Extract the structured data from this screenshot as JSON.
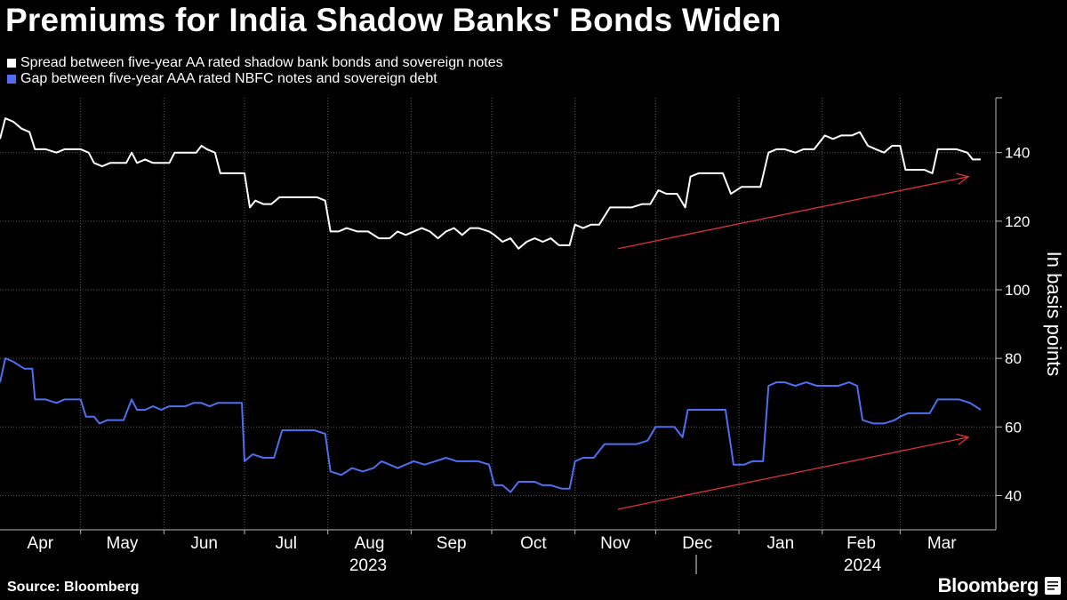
{
  "title": "Premiums for India Shadow Banks' Bonds Widen",
  "source": "Source: Bloomberg",
  "brand": "Bloomberg",
  "colors": {
    "background": "#000000",
    "aa_series": "#ffffff",
    "aaa_series": "#4f6ff0",
    "trend_arrow": "#e0323c",
    "grid": "#5a5a5a"
  },
  "chart_data": {
    "type": "line",
    "title": "Premiums for India Shadow Banks' Bonds Widen",
    "ylabel": "In basis points",
    "ylim": [
      30,
      156
    ],
    "yticks": [
      40,
      60,
      80,
      100,
      120,
      140
    ],
    "x_months": [
      "Apr",
      "May",
      "Jun",
      "Jul",
      "Aug",
      "Sep",
      "Oct",
      "Nov",
      "Dec",
      "Jan",
      "Feb",
      "Mar"
    ],
    "x_years": [
      "2023",
      "2024"
    ],
    "x_range": [
      "2023-04-01",
      "2024-03-31"
    ],
    "grid": true,
    "legend_position": "top-left",
    "series": [
      {
        "name": "Spread between five-year AA rated shadow bank bonds and sovereign notes",
        "color": "#ffffff",
        "points": [
          [
            "2023-04-01",
            144
          ],
          [
            "2023-04-03",
            150
          ],
          [
            "2023-04-06",
            149
          ],
          [
            "2023-04-09",
            147
          ],
          [
            "2023-04-12",
            146
          ],
          [
            "2023-04-14",
            141
          ],
          [
            "2023-04-18",
            141
          ],
          [
            "2023-04-22",
            140
          ],
          [
            "2023-04-25",
            141
          ],
          [
            "2023-04-28",
            141
          ],
          [
            "2023-05-01",
            141
          ],
          [
            "2023-05-04",
            140
          ],
          [
            "2023-05-06",
            137
          ],
          [
            "2023-05-09",
            136
          ],
          [
            "2023-05-12",
            137
          ],
          [
            "2023-05-15",
            137
          ],
          [
            "2023-05-18",
            137
          ],
          [
            "2023-05-20",
            140
          ],
          [
            "2023-05-22",
            137
          ],
          [
            "2023-05-25",
            138
          ],
          [
            "2023-05-28",
            137
          ],
          [
            "2023-05-31",
            137
          ],
          [
            "2023-06-03",
            137
          ],
          [
            "2023-06-05",
            140
          ],
          [
            "2023-06-09",
            140
          ],
          [
            "2023-06-13",
            140
          ],
          [
            "2023-06-15",
            142
          ],
          [
            "2023-06-17",
            141
          ],
          [
            "2023-06-20",
            140
          ],
          [
            "2023-06-22",
            134
          ],
          [
            "2023-06-25",
            134
          ],
          [
            "2023-06-28",
            134
          ],
          [
            "2023-07-01",
            134
          ],
          [
            "2023-07-03",
            124
          ],
          [
            "2023-07-05",
            126
          ],
          [
            "2023-07-08",
            125
          ],
          [
            "2023-07-11",
            125
          ],
          [
            "2023-07-14",
            127
          ],
          [
            "2023-07-18",
            127
          ],
          [
            "2023-07-22",
            127
          ],
          [
            "2023-07-25",
            127
          ],
          [
            "2023-07-28",
            127
          ],
          [
            "2023-07-31",
            126
          ],
          [
            "2023-08-02",
            117
          ],
          [
            "2023-08-05",
            117
          ],
          [
            "2023-08-08",
            118
          ],
          [
            "2023-08-12",
            117
          ],
          [
            "2023-08-16",
            117
          ],
          [
            "2023-08-20",
            115
          ],
          [
            "2023-08-24",
            115
          ],
          [
            "2023-08-27",
            117
          ],
          [
            "2023-08-30",
            116
          ],
          [
            "2023-09-02",
            117
          ],
          [
            "2023-09-05",
            118
          ],
          [
            "2023-09-08",
            117
          ],
          [
            "2023-09-11",
            115
          ],
          [
            "2023-09-14",
            117
          ],
          [
            "2023-09-17",
            118
          ],
          [
            "2023-09-20",
            116
          ],
          [
            "2023-09-23",
            118
          ],
          [
            "2023-09-26",
            118
          ],
          [
            "2023-09-30",
            117
          ],
          [
            "2023-10-02",
            116
          ],
          [
            "2023-10-05",
            114
          ],
          [
            "2023-10-08",
            115
          ],
          [
            "2023-10-11",
            112
          ],
          [
            "2023-10-14",
            114
          ],
          [
            "2023-10-17",
            115
          ],
          [
            "2023-10-20",
            114
          ],
          [
            "2023-10-23",
            115
          ],
          [
            "2023-10-26",
            113
          ],
          [
            "2023-10-30",
            113
          ],
          [
            "2023-11-01",
            119
          ],
          [
            "2023-11-04",
            118
          ],
          [
            "2023-11-07",
            119
          ],
          [
            "2023-11-10",
            119
          ],
          [
            "2023-11-14",
            124
          ],
          [
            "2023-11-18",
            124
          ],
          [
            "2023-11-22",
            124
          ],
          [
            "2023-11-26",
            125
          ],
          [
            "2023-11-29",
            125
          ],
          [
            "2023-12-02",
            129
          ],
          [
            "2023-12-05",
            128
          ],
          [
            "2023-12-09",
            128
          ],
          [
            "2023-12-12",
            124
          ],
          [
            "2023-12-14",
            133
          ],
          [
            "2023-12-17",
            134
          ],
          [
            "2023-12-20",
            134
          ],
          [
            "2023-12-23",
            134
          ],
          [
            "2023-12-26",
            134
          ],
          [
            "2023-12-29",
            128
          ],
          [
            "2024-01-02",
            130
          ],
          [
            "2024-01-05",
            130
          ],
          [
            "2024-01-09",
            130
          ],
          [
            "2024-01-12",
            140
          ],
          [
            "2024-01-15",
            141
          ],
          [
            "2024-01-18",
            141
          ],
          [
            "2024-01-22",
            140
          ],
          [
            "2024-01-25",
            141
          ],
          [
            "2024-01-29",
            141
          ],
          [
            "2024-02-02",
            145
          ],
          [
            "2024-02-05",
            144
          ],
          [
            "2024-02-08",
            145
          ],
          [
            "2024-02-12",
            145
          ],
          [
            "2024-02-15",
            146
          ],
          [
            "2024-02-18",
            142
          ],
          [
            "2024-02-21",
            141
          ],
          [
            "2024-02-24",
            140
          ],
          [
            "2024-02-27",
            142
          ],
          [
            "2024-03-01",
            142
          ],
          [
            "2024-03-03",
            135
          ],
          [
            "2024-03-06",
            135
          ],
          [
            "2024-03-10",
            135
          ],
          [
            "2024-03-13",
            134
          ],
          [
            "2024-03-15",
            141
          ],
          [
            "2024-03-18",
            141
          ],
          [
            "2024-03-22",
            141
          ],
          [
            "2024-03-26",
            140
          ],
          [
            "2024-03-28",
            138
          ],
          [
            "2024-03-31",
            138
          ]
        ]
      },
      {
        "name": "Gap between five-year AAA rated NBFC notes and sovereign debt",
        "color": "#4f6ff0",
        "points": [
          [
            "2023-04-01",
            73
          ],
          [
            "2023-04-03",
            80
          ],
          [
            "2023-04-06",
            79
          ],
          [
            "2023-04-10",
            77
          ],
          [
            "2023-04-13",
            77
          ],
          [
            "2023-04-14",
            68
          ],
          [
            "2023-04-18",
            68
          ],
          [
            "2023-04-22",
            67
          ],
          [
            "2023-04-25",
            68
          ],
          [
            "2023-04-28",
            68
          ],
          [
            "2023-05-01",
            68
          ],
          [
            "2023-05-03",
            63
          ],
          [
            "2023-05-06",
            63
          ],
          [
            "2023-05-08",
            61
          ],
          [
            "2023-05-11",
            62
          ],
          [
            "2023-05-14",
            62
          ],
          [
            "2023-05-17",
            62
          ],
          [
            "2023-05-20",
            68
          ],
          [
            "2023-05-22",
            65
          ],
          [
            "2023-05-25",
            65
          ],
          [
            "2023-05-28",
            66
          ],
          [
            "2023-05-31",
            65
          ],
          [
            "2023-06-03",
            66
          ],
          [
            "2023-06-06",
            66
          ],
          [
            "2023-06-09",
            66
          ],
          [
            "2023-06-12",
            67
          ],
          [
            "2023-06-15",
            67
          ],
          [
            "2023-06-18",
            66
          ],
          [
            "2023-06-21",
            67
          ],
          [
            "2023-06-24",
            67
          ],
          [
            "2023-06-27",
            67
          ],
          [
            "2023-06-30",
            67
          ],
          [
            "2023-07-01",
            50
          ],
          [
            "2023-07-04",
            52
          ],
          [
            "2023-07-08",
            51
          ],
          [
            "2023-07-12",
            51
          ],
          [
            "2023-07-15",
            59
          ],
          [
            "2023-07-19",
            59
          ],
          [
            "2023-07-23",
            59
          ],
          [
            "2023-07-27",
            59
          ],
          [
            "2023-07-31",
            58
          ],
          [
            "2023-08-02",
            47
          ],
          [
            "2023-08-06",
            46
          ],
          [
            "2023-08-10",
            48
          ],
          [
            "2023-08-14",
            47
          ],
          [
            "2023-08-18",
            48
          ],
          [
            "2023-08-21",
            50
          ],
          [
            "2023-08-24",
            49
          ],
          [
            "2023-08-27",
            48
          ],
          [
            "2023-08-30",
            49
          ],
          [
            "2023-09-02",
            50
          ],
          [
            "2023-09-06",
            49
          ],
          [
            "2023-09-10",
            50
          ],
          [
            "2023-09-14",
            51
          ],
          [
            "2023-09-18",
            50
          ],
          [
            "2023-09-22",
            50
          ],
          [
            "2023-09-26",
            50
          ],
          [
            "2023-09-30",
            49
          ],
          [
            "2023-10-02",
            43
          ],
          [
            "2023-10-05",
            43
          ],
          [
            "2023-10-08",
            41
          ],
          [
            "2023-10-11",
            44
          ],
          [
            "2023-10-14",
            44
          ],
          [
            "2023-10-17",
            44
          ],
          [
            "2023-10-20",
            43
          ],
          [
            "2023-10-23",
            43
          ],
          [
            "2023-10-27",
            42
          ],
          [
            "2023-10-30",
            42
          ],
          [
            "2023-11-01",
            50
          ],
          [
            "2023-11-04",
            51
          ],
          [
            "2023-11-08",
            51
          ],
          [
            "2023-11-12",
            55
          ],
          [
            "2023-11-16",
            55
          ],
          [
            "2023-11-20",
            55
          ],
          [
            "2023-11-24",
            55
          ],
          [
            "2023-11-28",
            56
          ],
          [
            "2023-12-01",
            60
          ],
          [
            "2023-12-04",
            60
          ],
          [
            "2023-12-08",
            60
          ],
          [
            "2023-12-11",
            57
          ],
          [
            "2023-12-13",
            65
          ],
          [
            "2023-12-16",
            65
          ],
          [
            "2023-12-20",
            65
          ],
          [
            "2023-12-24",
            65
          ],
          [
            "2023-12-27",
            65
          ],
          [
            "2023-12-30",
            49
          ],
          [
            "2024-01-03",
            49
          ],
          [
            "2024-01-06",
            50
          ],
          [
            "2024-01-10",
            50
          ],
          [
            "2024-01-12",
            72
          ],
          [
            "2024-01-15",
            73
          ],
          [
            "2024-01-18",
            73
          ],
          [
            "2024-01-22",
            72
          ],
          [
            "2024-01-26",
            73
          ],
          [
            "2024-01-30",
            72
          ],
          [
            "2024-02-03",
            72
          ],
          [
            "2024-02-07",
            72
          ],
          [
            "2024-02-11",
            73
          ],
          [
            "2024-02-14",
            72
          ],
          [
            "2024-02-16",
            62
          ],
          [
            "2024-02-20",
            61
          ],
          [
            "2024-02-24",
            61
          ],
          [
            "2024-02-28",
            62
          ],
          [
            "2024-03-01",
            63
          ],
          [
            "2024-03-04",
            64
          ],
          [
            "2024-03-08",
            64
          ],
          [
            "2024-03-12",
            64
          ],
          [
            "2024-03-15",
            68
          ],
          [
            "2024-03-19",
            68
          ],
          [
            "2024-03-23",
            68
          ],
          [
            "2024-03-27",
            67
          ],
          [
            "2024-03-31",
            65
          ]
        ]
      }
    ],
    "trend_arrows": [
      {
        "from": [
          "2023-11-17",
          112
        ],
        "to": [
          "2024-03-31",
          133
        ]
      },
      {
        "from": [
          "2023-11-17",
          36
        ],
        "to": [
          "2024-03-31",
          57
        ]
      }
    ]
  }
}
